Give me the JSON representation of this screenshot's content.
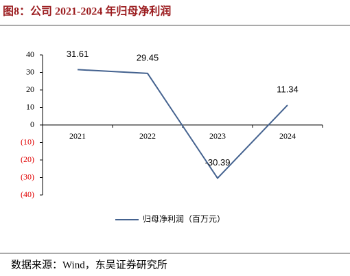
{
  "chart_data": {
    "type": "line",
    "title": "图8：公司 2021-2024 年归母净利润",
    "categories": [
      "2021",
      "2022",
      "2023",
      "2024"
    ],
    "series": [
      {
        "name": "归母净利润（百万元）",
        "color": "#44628f",
        "values": [
          31.61,
          29.45,
          -30.39,
          11.34
        ]
      }
    ],
    "ylim": [
      -40,
      40
    ],
    "yticks": [
      40,
      30,
      20,
      10,
      0,
      {
        "value": -10,
        "label": "(10)"
      },
      {
        "value": -20,
        "label": "(20)"
      },
      {
        "value": -30,
        "label": "(30)"
      },
      {
        "value": -40,
        "label": "(40)"
      }
    ],
    "negative_tick_color": "#e00000",
    "legend": "bottom",
    "source": "数据来源：Wind，东吴证券研究所"
  }
}
